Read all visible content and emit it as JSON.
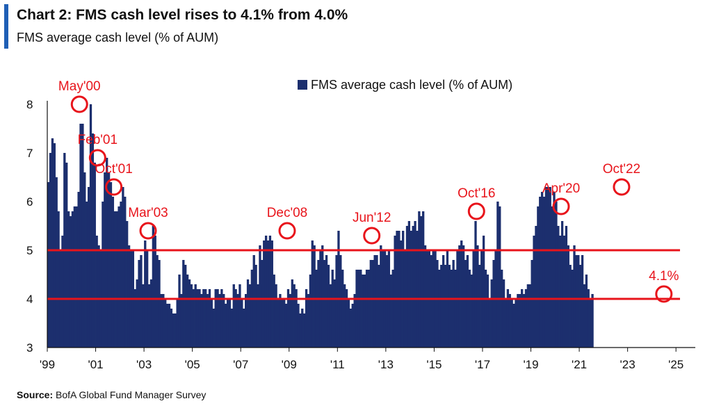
{
  "title": "Chart 2: FMS cash level rises to 4.1% from 4.0%",
  "subtitle": "FMS average cash level (% of AUM)",
  "source_label": "Source:",
  "source_text": "BofA Global Fund Manager Survey",
  "colors": {
    "bar": "#1c2f6e",
    "annotation": "#e8141b",
    "accent": "#1f5fb5"
  },
  "chart_data": {
    "type": "bar",
    "ylim": [
      3,
      8
    ],
    "xlim": [
      1999.0,
      2025.8
    ],
    "yticks": [
      "3",
      "4",
      "5",
      "6",
      "7",
      "8"
    ],
    "xticks": [
      {
        "label": "'99",
        "year": 1999
      },
      {
        "label": "'01",
        "year": 2001
      },
      {
        "label": "'03",
        "year": 2003
      },
      {
        "label": "'05",
        "year": 2005
      },
      {
        "label": "'07",
        "year": 2007
      },
      {
        "label": "'09",
        "year": 2009
      },
      {
        "label": "'11",
        "year": 2011
      },
      {
        "label": "'13",
        "year": 2013
      },
      {
        "label": "'15",
        "year": 2015
      },
      {
        "label": "'17",
        "year": 2017
      },
      {
        "label": "'19",
        "year": 2019
      },
      {
        "label": "'21",
        "year": 2021
      },
      {
        "label": "'23",
        "year": 2023
      },
      {
        "label": "'25",
        "year": 2025
      }
    ],
    "legend": "FMS average cash level (% of AUM)",
    "reference_lines": [
      5.0,
      4.0
    ],
    "series": [
      {
        "start": 1999.0,
        "step": 0.08333,
        "values": [
          6.4,
          7.0,
          7.3,
          7.2,
          6.5,
          5.8,
          5.0,
          5.3,
          7.0,
          6.8,
          5.8,
          5.7,
          5.8,
          5.9,
          5.9,
          6.2,
          7.6,
          7.6,
          6.6,
          6.0,
          6.3,
          8.0,
          7.4,
          6.8,
          5.3,
          5.1,
          5.0,
          6.0,
          6.6,
          6.9,
          6.6,
          6.4,
          6.1,
          5.8,
          5.8,
          5.9,
          6.0,
          6.3,
          6.1,
          5.6,
          5.1,
          5.0,
          5.0,
          4.2,
          4.4,
          4.8,
          4.9,
          4.3,
          5.2,
          5.0,
          4.3,
          4.4,
          5.5,
          5.3,
          4.9,
          4.8,
          4.1,
          4.1,
          4.0,
          3.9,
          3.9,
          3.8,
          3.7,
          3.7,
          4.0,
          4.5,
          4.1,
          4.8,
          4.7,
          4.5,
          4.4,
          4.3,
          4.2,
          4.3,
          4.2,
          4.2,
          4.1,
          4.2,
          4.2,
          4.1,
          4.2,
          4.0,
          3.8,
          4.2,
          4.2,
          4.1,
          4.2,
          4.1,
          3.9,
          4.0,
          4.0,
          3.8,
          4.3,
          4.2,
          4.1,
          4.3,
          4.0,
          3.8,
          4.1,
          4.4,
          4.3,
          4.6,
          4.9,
          4.7,
          4.3,
          5.1,
          4.8,
          5.2,
          5.3,
          5.2,
          5.3,
          5.2,
          4.5,
          4.3,
          4.0,
          4.1,
          4.0,
          4.0,
          3.9,
          4.2,
          4.1,
          4.4,
          4.3,
          4.2,
          3.9,
          3.7,
          3.8,
          3.7,
          4.2,
          4.1,
          4.5,
          5.2,
          5.1,
          4.6,
          4.8,
          5.0,
          5.1,
          4.8,
          4.9,
          4.7,
          4.3,
          4.6,
          4.4,
          4.9,
          5.4,
          4.9,
          4.6,
          4.3,
          4.2,
          4.0,
          3.8,
          3.9,
          4.1,
          4.6,
          4.6,
          4.6,
          4.5,
          4.5,
          4.6,
          4.6,
          4.8,
          4.8,
          4.9,
          4.9,
          4.7,
          5.1,
          5.0,
          5.0,
          4.9,
          5.0,
          4.5,
          4.6,
          5.3,
          5.4,
          5.4,
          5.2,
          5.4,
          5.0,
          5.5,
          5.6,
          5.4,
          5.5,
          5.6,
          5.4,
          5.8,
          5.7,
          5.8,
          5.1,
          5.0,
          5.0,
          4.9,
          5.0,
          5.0,
          4.8,
          4.6,
          4.7,
          4.9,
          4.7,
          5.0,
          4.7,
          4.6,
          4.8,
          4.6,
          5.0,
          5.1,
          5.2,
          5.1,
          4.8,
          4.9,
          4.6,
          4.5,
          5.0,
          5.6,
          5.1,
          4.7,
          5.0,
          5.3,
          4.6,
          4.5,
          4.0,
          4.4,
          4.8,
          5.0,
          6.0,
          5.9,
          4.6,
          4.4,
          4.0,
          4.2,
          4.1,
          4.0,
          3.9,
          4.0,
          4.1,
          4.1,
          4.2,
          4.1,
          4.2,
          4.3,
          4.3,
          4.8,
          5.3,
          5.5,
          5.9,
          6.1,
          6.2,
          6.1,
          6.3,
          6.3,
          6.3,
          5.9,
          6.2,
          6.0,
          5.5,
          5.3,
          5.6,
          5.3,
          5.5,
          5.1,
          4.7,
          4.6,
          5.1,
          4.9,
          4.9,
          4.7,
          4.9,
          4.3,
          4.5,
          4.2,
          4.0,
          4.1
        ]
      }
    ],
    "annotations": [
      {
        "label": "May'00",
        "x": 2000.33,
        "y": 8.0
      },
      {
        "label": "Feb'01",
        "x": 2001.08,
        "y": 6.9
      },
      {
        "label": "Oct'01",
        "x": 2001.75,
        "y": 6.3
      },
      {
        "label": "Mar'03",
        "x": 2003.17,
        "y": 5.4
      },
      {
        "label": "Dec'08",
        "x": 2008.92,
        "y": 5.4
      },
      {
        "label": "Jun'12",
        "x": 2012.42,
        "y": 5.3
      },
      {
        "label": "Oct'16",
        "x": 2016.75,
        "y": 5.8
      },
      {
        "label": "Apr'20",
        "x": 2020.25,
        "y": 5.9
      },
      {
        "label": "Oct'22",
        "x": 2022.75,
        "y": 6.3
      },
      {
        "label": "4.1%",
        "x": 2024.5,
        "y": 4.1
      }
    ]
  }
}
